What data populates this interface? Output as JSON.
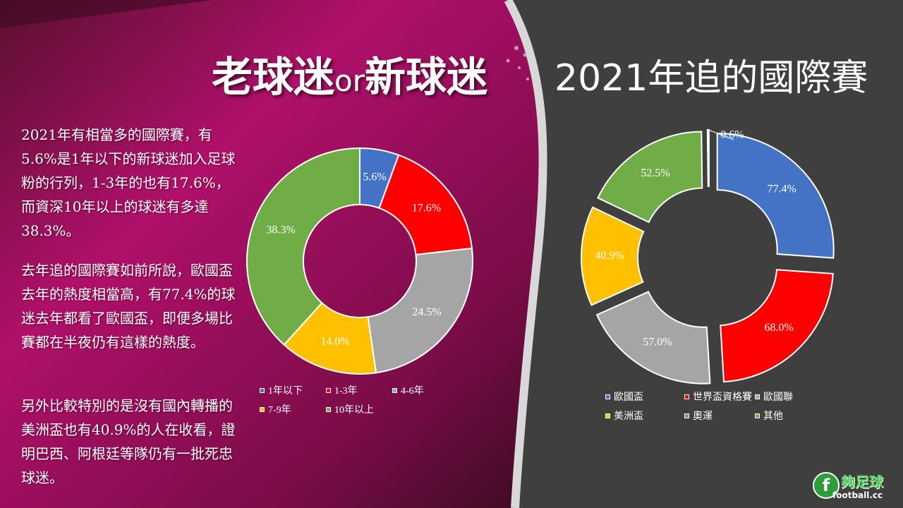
{
  "left": {
    "title_main": "老球迷",
    "title_or": "or",
    "title_end": "新球迷",
    "paragraph1": "2021年有相當多的國際賽，有5.6%是1年以下的新球迷加入足球粉的行列，1-3年的也有17.6%，而資深10年以上的球迷有多達38.3%。",
    "paragraph2": "去年追的國際賽如前所說，歐國盃去年的熱度相當高，有77.4%的球迷去年都看了歐國盃，即便多場比賽都在半夜仍有這樣的熱度。",
    "paragraph3": "另外比較特別的是沒有國內轉播的美洲盃也有40.9%的人在收看，證明巴西、阿根廷等隊仍有一批死忠球迷。"
  },
  "right": {
    "title": "2021年追的國際賽"
  },
  "chart_data": [
    {
      "type": "pie",
      "title": "",
      "categories": [
        "1年以下",
        "1-3年",
        "4-6年",
        "7-9年",
        "10年以上"
      ],
      "values": [
        5.6,
        17.6,
        24.5,
        14.0,
        38.3
      ],
      "labels": [
        "5.6%",
        "17.6%",
        "24.5%",
        "14.0%",
        "38.3%"
      ],
      "colors": [
        "#4472C4",
        "#FF0000",
        "#A5A5A5",
        "#FFC000",
        "#70AD47"
      ],
      "legend_position": "bottom"
    },
    {
      "type": "pie",
      "title": "",
      "categories": [
        "歐國盃",
        "世界盃資格賽",
        "歐國聯",
        "美洲盃",
        "奧運",
        "其他"
      ],
      "values": [
        77.4,
        68.0,
        57.0,
        40.9,
        52.5,
        0.6
      ],
      "labels": [
        "77.4%",
        "68.0%",
        "57.0%",
        "40.9%",
        "52.5%",
        "0.6%"
      ],
      "colors": [
        "#4472C4",
        "#FF0000",
        "#A5A5A5",
        "#FFC000",
        "#70AD47",
        "#70AD47"
      ],
      "legend_position": "bottom"
    }
  ],
  "logo": {
    "cn": "夠足球",
    "en": "football.cc",
    "letter": "f"
  }
}
